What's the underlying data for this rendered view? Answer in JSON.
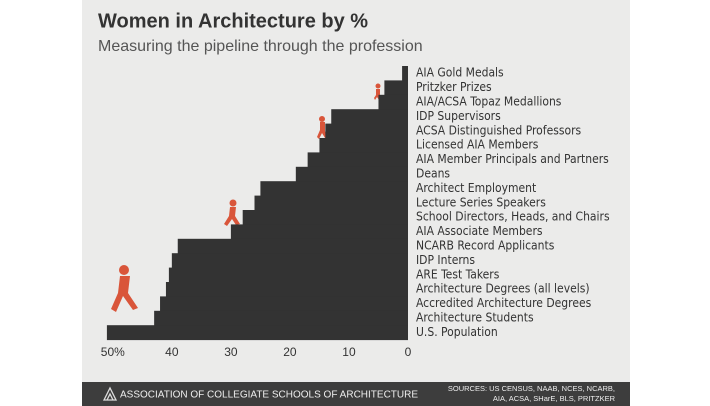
{
  "chart_data": {
    "type": "bar",
    "orientation": "horizontal",
    "xreverse": true,
    "title": "Women in Architecture by %",
    "subtitle": "Measuring the pipeline through the profession",
    "categories": [
      "AIA Gold Medals",
      "Pritzker Prizes",
      "AIA/ACSA Topaz Medallions",
      "IDP Supervisors",
      "ACSA Distinguished Professors",
      "Licensed AIA Members",
      "AIA Member Principals and Partners",
      "Deans",
      "Architect Employment",
      "Lecture Series Speakers",
      "School Directors, Heads, and Chairs",
      "AIA Associate Members",
      "NCARB Record Applicants",
      "IDP Interns",
      "ARE Test Takers",
      "Architecture Degrees (all levels)",
      "Accredited Architecture Degrees",
      "Architecture Students",
      "U.S. Population"
    ],
    "values": [
      1,
      4,
      5,
      13,
      14,
      15,
      17,
      19,
      25,
      26,
      28,
      30,
      39,
      40,
      40.5,
      41,
      42,
      43,
      51
    ],
    "color": "#333333",
    "xlim": [
      0,
      52
    ],
    "xticks": [
      {
        "value": 50,
        "label": "50%"
      },
      40,
      30,
      20,
      10,
      0
    ],
    "footer": {
      "organization": "ASSOCIATION OF COLLEGIATE SCHOOLS OF ARCHITECTURE",
      "sources": [
        "SOURCES: US CENSUS, NAAB, NCES, NCARB,",
        "AIA, ACSA, SHarE, BLS, PRITZKER"
      ]
    }
  }
}
